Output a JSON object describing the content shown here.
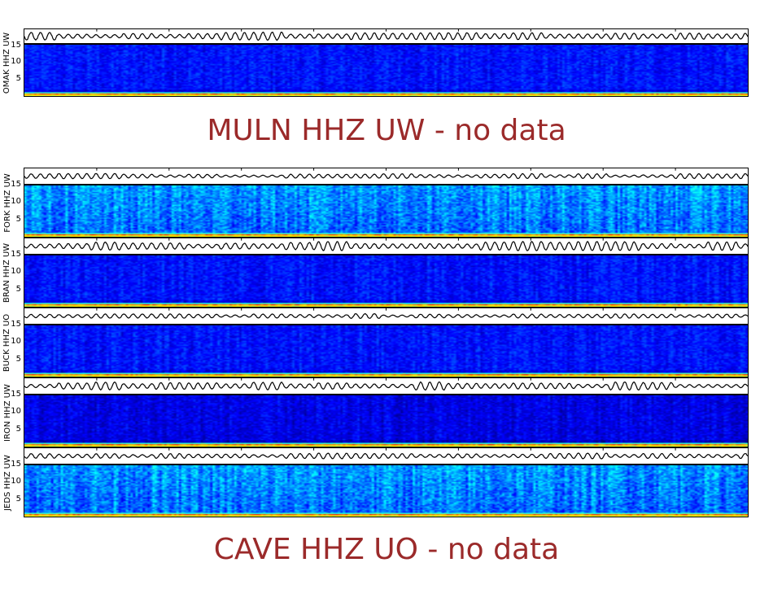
{
  "chart_data": {
    "type": "heatmap",
    "description_kind": "seismic webicorder-style spectrogram panels",
    "yticks": [
      "5",
      "10",
      "15"
    ],
    "colormap": "jet",
    "stations": [
      {
        "label": "OMAK HHZ UW",
        "has_data": true,
        "spec_style": "dark"
      },
      {
        "label": "MULN HHZ UW - no data",
        "has_data": false
      },
      {
        "label": "FORK HHZ UW",
        "has_data": true,
        "spec_style": "bright"
      },
      {
        "label": "BRAN HHZ UW",
        "has_data": true,
        "spec_style": "dark"
      },
      {
        "label": "BUCK HHZ UO",
        "has_data": true,
        "spec_style": "dark"
      },
      {
        "label": "IRON HHZ UW",
        "has_data": true,
        "spec_style": "darker"
      },
      {
        "label": "JEDS HHZ UW",
        "has_data": true,
        "spec_style": "bright"
      },
      {
        "label": "CAVE HHZ UO - no data",
        "has_data": false
      }
    ],
    "colors": {
      "nodata_text": "#9b2a2a",
      "trace": "#000000"
    }
  }
}
